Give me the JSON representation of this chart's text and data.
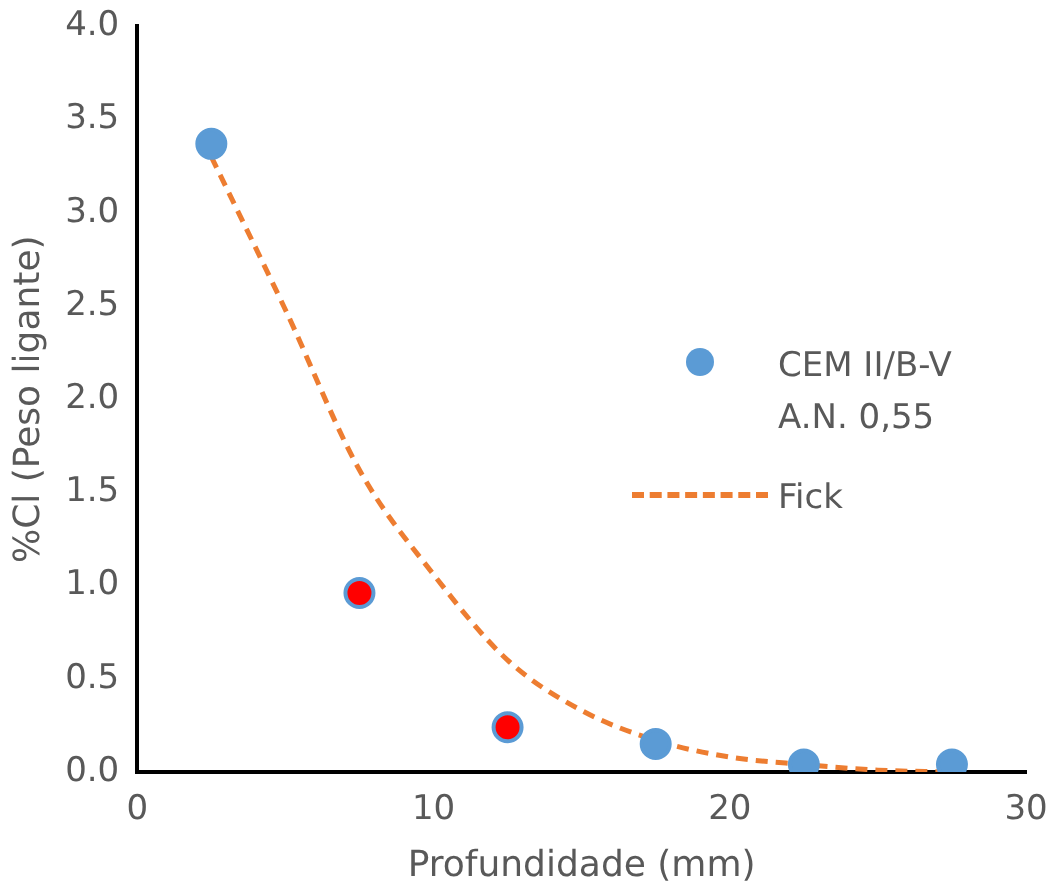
{
  "chart_data": {
    "type": "scatter",
    "xlabel": "Profundidade (mm)",
    "ylabel": "%Cl (Peso ligante)",
    "xlim": [
      0,
      30
    ],
    "xticks": [
      0,
      10,
      20,
      30
    ],
    "ylim": [
      0,
      4
    ],
    "yticks": [
      {
        "value": 0,
        "label": "0.0"
      },
      {
        "value": 0.5,
        "label": "0.5"
      },
      {
        "value": 1,
        "label": "1.0"
      },
      {
        "value": 1.5,
        "label": "1.5"
      },
      {
        "value": 2,
        "label": "2.0"
      },
      {
        "value": 2.5,
        "label": "2.5"
      },
      {
        "value": 3,
        "label": "3.0"
      },
      {
        "value": 3.5,
        "label": "3.5"
      },
      {
        "value": 4,
        "label": "4.0"
      }
    ],
    "grid": false,
    "legend": "right",
    "marker": "circle",
    "series": [
      {
        "name": "CEM II/B-V A.N. 0,55",
        "color": "#5b9bd5",
        "colors": [
          "#5b9bd5",
          "#ff0000",
          "#ff0000",
          "#5b9bd5",
          "#5b9bd5",
          "#5b9bd5"
        ],
        "x": [
          2.5,
          7.5,
          12.5,
          17.5,
          22.5,
          27.5
        ],
        "values": [
          3.37,
          0.96,
          0.24,
          0.15,
          0.04,
          0.04
        ]
      },
      {
        "name": "Fick",
        "type": "line",
        "color": "#ed7d31",
        "line_style": "dashed",
        "marker": "none",
        "x": [
          2.5,
          5,
          7.5,
          10,
          12.5,
          15,
          17.5,
          20,
          22.5,
          25,
          27.5
        ],
        "values": [
          3.3,
          2.48,
          1.62,
          1.06,
          0.6,
          0.33,
          0.17,
          0.08,
          0.04,
          0.01,
          0
        ]
      }
    ]
  }
}
